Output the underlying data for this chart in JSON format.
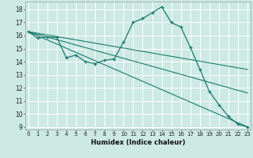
{
  "xlabel": "Humidex (Indice chaleur)",
  "xlim_min": -0.3,
  "xlim_max": 23.3,
  "ylim_min": 8.8,
  "ylim_max": 18.6,
  "yticks": [
    9,
    10,
    11,
    12,
    13,
    14,
    15,
    16,
    17,
    18
  ],
  "xticks": [
    0,
    1,
    2,
    3,
    4,
    5,
    6,
    7,
    8,
    9,
    10,
    11,
    12,
    13,
    14,
    15,
    16,
    17,
    18,
    19,
    20,
    21,
    22,
    23
  ],
  "bg_color": "#cce9e4",
  "grid_color": "#ffffff",
  "line_color": "#1a7a6e",
  "line1_x": [
    0,
    1,
    2,
    3,
    4,
    5,
    6,
    7,
    8,
    9,
    10,
    11,
    12,
    13,
    14,
    15,
    16,
    17,
    18,
    19,
    20,
    21,
    22,
    23
  ],
  "line1_y": [
    16.3,
    15.8,
    15.9,
    15.85,
    14.3,
    14.5,
    14.0,
    13.85,
    14.1,
    14.2,
    15.5,
    17.0,
    17.3,
    17.75,
    18.2,
    17.0,
    16.65,
    15.1,
    13.4,
    11.7,
    10.7,
    9.8,
    9.2,
    9.0
  ],
  "line2_x": [
    0,
    23
  ],
  "line2_y": [
    16.3,
    13.4
  ],
  "line3_x": [
    0,
    23
  ],
  "line3_y": [
    16.3,
    11.6
  ],
  "line4_x": [
    0,
    23
  ],
  "line4_y": [
    16.3,
    9.0
  ]
}
